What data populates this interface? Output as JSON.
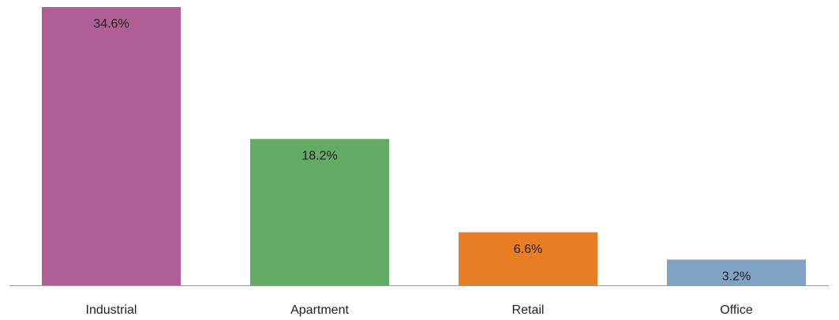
{
  "chart_data": {
    "type": "bar",
    "categories": [
      "Industrial",
      "Apartment",
      "Retail",
      "Office"
    ],
    "values": [
      34.6,
      18.2,
      6.6,
      3.2
    ],
    "value_labels": [
      "34.6%",
      "18.2%",
      "6.6%",
      "3.2%"
    ],
    "colors": [
      "#b05f96",
      "#63ab62",
      "#e77e24",
      "#7fa2c5"
    ]
  }
}
